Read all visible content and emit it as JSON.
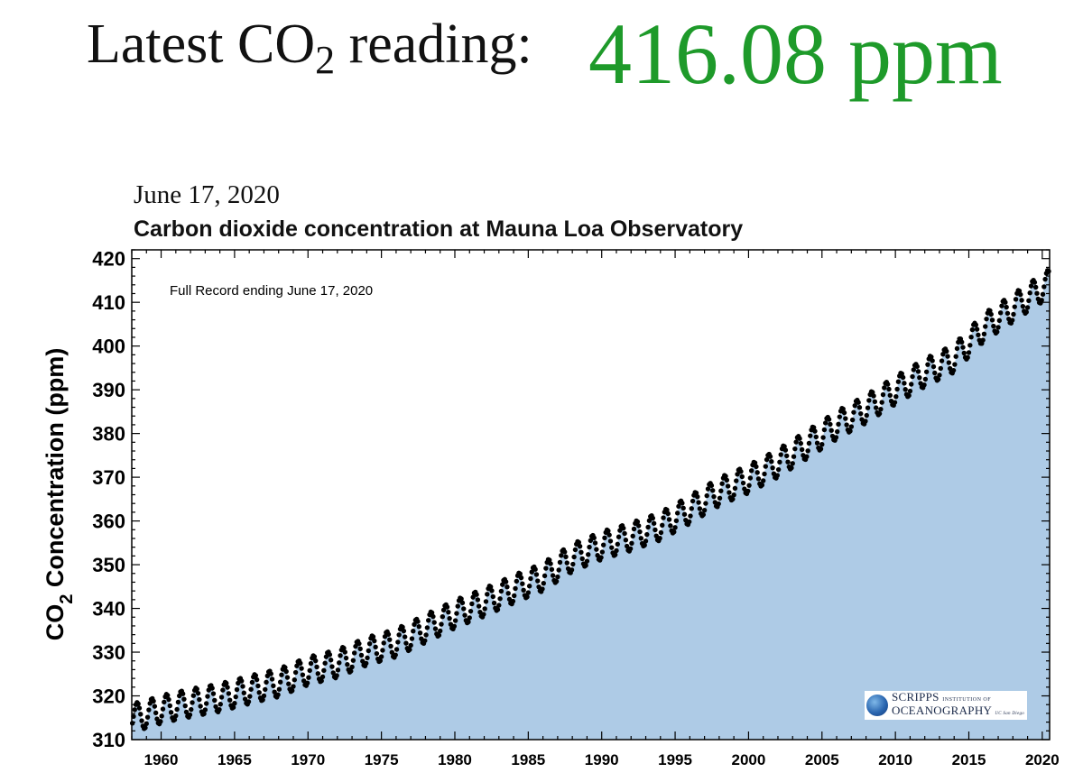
{
  "header": {
    "label_prefix": "Latest CO",
    "label_sub": "2",
    "label_suffix": " reading:",
    "reading": "416.08 ppm",
    "reading_color": "#1e9a2a"
  },
  "chart_data": {
    "type": "scatter",
    "date": "June 17, 2020",
    "title": "Carbon dioxide concentration at Mauna Loa Observatory",
    "annotation": "Full Record ending June 17, 2020",
    "ylabel_prefix": "CO",
    "ylabel_sub": "2",
    "ylabel_suffix": " Concentration (ppm)",
    "xlabel": "",
    "xlim": [
      1958.0,
      2020.5
    ],
    "ylim": [
      310,
      422
    ],
    "xticks": [
      1960,
      1965,
      1970,
      1975,
      1980,
      1985,
      1990,
      1995,
      2000,
      2005,
      2010,
      2015,
      2020
    ],
    "yticks": [
      310,
      320,
      330,
      340,
      350,
      360,
      370,
      380,
      390,
      400,
      410,
      420
    ],
    "fill_color": "#aecbe6",
    "marker_color": "#000000",
    "series": [
      {
        "x": [
          1958.5,
          1960,
          1962,
          1964,
          1966,
          1968,
          1970,
          1972,
          1974,
          1976,
          1978,
          1980,
          1982,
          1984,
          1986,
          1988,
          1990,
          1992,
          1994,
          1996,
          1998,
          2000,
          2002,
          2004,
          2006,
          2008,
          2010,
          2012,
          2014,
          2016,
          2018,
          2020.4
        ],
        "y": [
          315.3,
          316.9,
          318.4,
          319.6,
          321.4,
          323.0,
          325.7,
          327.4,
          330.2,
          332.1,
          335.4,
          338.7,
          341.4,
          344.4,
          347.2,
          351.6,
          354.4,
          356.4,
          358.8,
          362.6,
          366.7,
          369.6,
          373.2,
          377.5,
          381.9,
          385.6,
          389.9,
          393.9,
          397.2,
          404.2,
          408.7,
          414.2
        ]
      }
    ],
    "seasonal_amplitude": 3.2
  },
  "logo": {
    "line1_main": "SCRIPPS",
    "line1_small": "INSTITUTION OF",
    "line2_main": "OCEANOGRAPHY",
    "line2_small": "UC San Diego"
  }
}
